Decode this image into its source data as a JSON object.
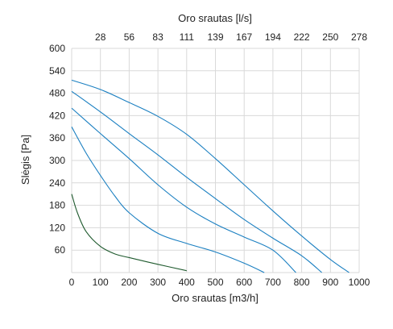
{
  "chart_data": {
    "type": "line",
    "xlabel": "Oro srautas [m3/h]",
    "x2label": "Oro srautas [l/s]",
    "ylabel": "Slėgis [Pa]",
    "xlim": [
      0,
      1000
    ],
    "ylim": [
      0,
      600
    ],
    "grid": true,
    "x_ticks": [
      "0",
      "100",
      "200",
      "300",
      "400",
      "500",
      "600",
      "700",
      "800",
      "900",
      "1000"
    ],
    "y_ticks": [
      "60",
      "120",
      "180",
      "240",
      "300",
      "360",
      "420",
      "480",
      "540",
      "600"
    ],
    "x2_ticks": [
      "28",
      "56",
      "83",
      "111",
      "139",
      "167",
      "194",
      "222",
      "250",
      "278"
    ],
    "colors": {
      "curve": "#1a7fc1",
      "lowest_curve": "#1f5a2e",
      "grid": "#d9d9d9"
    },
    "series": [
      {
        "color": "#1a7fc1",
        "x": [
          0,
          100,
          200,
          300,
          400,
          500,
          600,
          700,
          800,
          900,
          965
        ],
        "y": [
          515,
          490,
          455,
          418,
          370,
          305,
          235,
          165,
          98,
          35,
          0
        ]
      },
      {
        "color": "#1a7fc1",
        "x": [
          0,
          100,
          200,
          300,
          400,
          500,
          600,
          700,
          800,
          870
        ],
        "y": [
          485,
          430,
          372,
          315,
          255,
          198,
          142,
          92,
          45,
          0
        ]
      },
      {
        "color": "#1a7fc1",
        "x": [
          0,
          100,
          200,
          300,
          400,
          500,
          600,
          700,
          780
        ],
        "y": [
          440,
          372,
          305,
          235,
          175,
          130,
          95,
          60,
          0
        ]
      },
      {
        "color": "#1a7fc1",
        "x": [
          0,
          50,
          100,
          150,
          200,
          300,
          400,
          500,
          600,
          670
        ],
        "y": [
          390,
          320,
          260,
          205,
          160,
          105,
          78,
          55,
          25,
          0
        ]
      },
      {
        "color": "#1f5a2e",
        "x": [
          0,
          20,
          50,
          100,
          150,
          200,
          300,
          400
        ],
        "y": [
          210,
          160,
          110,
          70,
          50,
          40,
          22,
          5
        ]
      }
    ]
  }
}
